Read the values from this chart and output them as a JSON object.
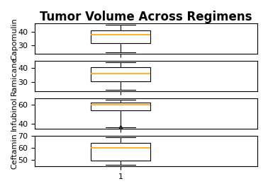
{
  "title": "Tumor Volume Across Regimens",
  "regimens": [
    "Capomulin",
    "Ramicane",
    "Infubinol",
    "Ceftamin"
  ],
  "boxplot_stats": {
    "Capomulin": {
      "whislo": 25.0,
      "q1": 32.0,
      "med": 38.0,
      "q3": 41.0,
      "whishi": 45.0,
      "fliers": []
    },
    "Ramicane": {
      "whislo": 24.0,
      "q1": 30.5,
      "med": 36.0,
      "q3": 40.5,
      "whishi": 44.0,
      "fliers": []
    },
    "Infubinol": {
      "whislo": 36.5,
      "q1": 54.0,
      "med": 60.0,
      "q3": 62.0,
      "whishi": 65.0,
      "fliers": [
        36.3
      ]
    },
    "Ceftamin": {
      "whislo": 45.5,
      "q1": 49.5,
      "med": 60.0,
      "q3": 64.0,
      "whishi": 69.0,
      "fliers": []
    }
  },
  "median_color": "orange",
  "box_color": "white",
  "flier_color": "green",
  "flier_marker": "^",
  "background_color": "white",
  "title_fontsize": 12,
  "tick_fontsize": 8,
  "ylabel_fontsize": 8,
  "figsize": [
    3.78,
    2.7
  ],
  "dpi": 100
}
